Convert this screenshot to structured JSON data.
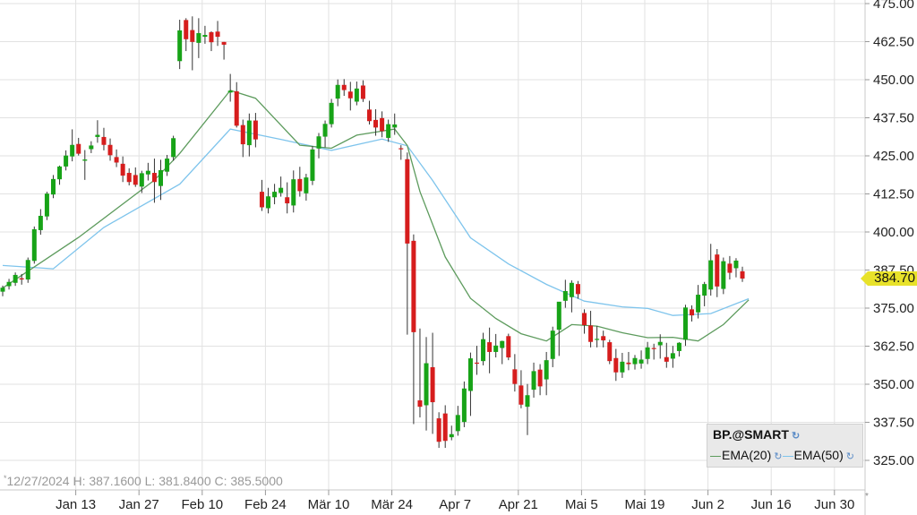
{
  "chart_data": {
    "type": "candlestick",
    "symbol": "BP.@SMART",
    "ylim": [
      318,
      475
    ],
    "y_ticks": [
      "475.00",
      "462.50",
      "450.00",
      "437.50",
      "425.00",
      "412.50",
      "400.00",
      "387.50",
      "375.00",
      "362.50",
      "350.00",
      "337.50",
      "325.00"
    ],
    "y_tick_values": [
      475,
      462.5,
      450,
      437.5,
      425,
      412.5,
      400,
      387.5,
      375,
      362.5,
      350,
      337.5,
      325
    ],
    "x_ticks": [
      "Jan 13",
      "Jan 27",
      "Feb 10",
      "Feb 24",
      "Mär 10",
      "Mär 24",
      "Apr 7",
      "Apr 21",
      "Mai 5",
      "Mai 19",
      "Jun 2",
      "Jun 16",
      "Jun 30"
    ],
    "last_price": "384.70",
    "last_price_value": 384.7,
    "ohlc_readout": "12/27/2024 H: 387.1600 L: 381.8400 C: 385.5000",
    "legend": {
      "symbol": "BP.@SMART",
      "ema20": "EMA(20)",
      "ema50": "EMA(50)"
    },
    "colors": {
      "up": "#17a317",
      "down": "#d61d1d",
      "ema20": "#5d9b5d",
      "ema50": "#7ec4ec",
      "grid": "#e2e2e2",
      "highlight": "#e8e22a"
    },
    "candles": [
      [
        380.4,
        382.4,
        378.9,
        381.7
      ],
      [
        382.2,
        384.6,
        381.1,
        383.6
      ],
      [
        383.3,
        386.7,
        382.3,
        385.9
      ],
      [
        384.8,
        386.2,
        382.7,
        384.4
      ],
      [
        384.4,
        391.6,
        383.3,
        390.8
      ],
      [
        390.5,
        401.8,
        389.6,
        400.9
      ],
      [
        400.6,
        407.5,
        399.1,
        405.3
      ],
      [
        405.1,
        413.2,
        403.9,
        412.6
      ],
      [
        412.3,
        418.7,
        411.1,
        417.4
      ],
      [
        417.3,
        421.8,
        415.5,
        421.5
      ],
      [
        421.5,
        426.8,
        420.2,
        425.1
      ],
      [
        424.8,
        433.7,
        423.2,
        428.6
      ],
      [
        428.9,
        430.9,
        425.1,
        425.7
      ],
      [
        423.4,
        426.9,
        417.1,
        423.8
      ],
      [
        427.2,
        429.8,
        425.9,
        428.4
      ],
      [
        431.2,
        436.7,
        429.3,
        431.9
      ],
      [
        431.2,
        434.2,
        426.8,
        428.6
      ],
      [
        428.6,
        430.7,
        423.4,
        425.2
      ],
      [
        424.6,
        427.1,
        421.3,
        422.8
      ],
      [
        422.4,
        424.8,
        416.4,
        418.5
      ],
      [
        419.4,
        420.9,
        415.3,
        416.4
      ],
      [
        418.7,
        421.2,
        414.8,
        415.5
      ],
      [
        414.9,
        420.1,
        412.8,
        419.3
      ],
      [
        418.9,
        422.7,
        416.9,
        420.1
      ],
      [
        419.4,
        424.1,
        409.6,
        416.4
      ],
      [
        415.1,
        423.7,
        410.5,
        420.3
      ],
      [
        419.8,
        425.3,
        418.4,
        424.1
      ],
      [
        424.6,
        431.6,
        423.4,
        430.8
      ],
      [
        456.1,
        469.7,
        453.5,
        466.2
      ],
      [
        469.6,
        470.2,
        459.4,
        463.3
      ],
      [
        466.3,
        470.8,
        453.1,
        462.4
      ],
      [
        462.1,
        470.2,
        457.1,
        465.3
      ],
      [
        464.1,
        467.7,
        461.8,
        464.7
      ],
      [
        465.6,
        465.9,
        459.4,
        462.3
      ],
      [
        465.8,
        469.3,
        461.1,
        464.1
      ],
      [
        462.4,
        462.4,
        456.6,
        461.5
      ],
      [
        445.8,
        451.9,
        442.8,
        446.4
      ],
      [
        446.2,
        449.2,
        434.3,
        434.9
      ],
      [
        435.1,
        436.9,
        424.6,
        428.8
      ],
      [
        428.5,
        438.9,
        424.8,
        436.6
      ],
      [
        436.6,
        439.1,
        427.8,
        430.4
      ],
      [
        413.2,
        417.1,
        406.9,
        408.1
      ],
      [
        407.8,
        414.5,
        406.1,
        411.7
      ],
      [
        411.4,
        415.8,
        409.1,
        413.2
      ],
      [
        412.8,
        418.2,
        411.6,
        414.5
      ],
      [
        411.4,
        416.3,
        406.1,
        409.4
      ],
      [
        408.7,
        420.2,
        406.4,
        417.3
      ],
      [
        417.4,
        421.4,
        411.6,
        413.4
      ],
      [
        412.7,
        419.1,
        410.3,
        417.9
      ],
      [
        416.8,
        428.2,
        415.4,
        427.1
      ],
      [
        427.4,
        432.5,
        424.2,
        431.4
      ],
      [
        431.3,
        436.6,
        427.8,
        435.5
      ],
      [
        435.4,
        443.7,
        434.3,
        442.4
      ],
      [
        443.8,
        450.1,
        441.3,
        448.3
      ],
      [
        448.3,
        450.2,
        444.7,
        446.6
      ],
      [
        446.1,
        449.3,
        439.9,
        443.9
      ],
      [
        442.8,
        449.4,
        441.6,
        447.1
      ],
      [
        448.1,
        449.8,
        442.7,
        443.7
      ],
      [
        440.2,
        443.1,
        435.3,
        436.4
      ],
      [
        436.8,
        440.3,
        431.6,
        434.3
      ],
      [
        437.4,
        439.6,
        431.1,
        433.1
      ],
      [
        430.9,
        436.9,
        429.6,
        435.4
      ],
      [
        434.3,
        438.9,
        431.9,
        435.3
      ],
      [
        427.5,
        428.5,
        423.7,
        427.3
      ],
      [
        423.9,
        426.1,
        366.3,
        396.2
      ],
      [
        397.1,
        399.2,
        336.9,
        367.1
      ],
      [
        344.7,
        368.3,
        339.1,
        342.6
      ],
      [
        343.1,
        365.5,
        334.8,
        356.9
      ],
      [
        355.6,
        366.9,
        333.7,
        344.1
      ],
      [
        338.8,
        340.8,
        329.1,
        331.1
      ],
      [
        340.4,
        343.1,
        329.1,
        331.4
      ],
      [
        332.6,
        336.4,
        331.6,
        333.6
      ],
      [
        334.6,
        342.9,
        333.1,
        339.9
      ],
      [
        337.6,
        350.9,
        335.9,
        348.6
      ],
      [
        347.8,
        360.4,
        339.6,
        358.5
      ],
      [
        357.1,
        362.6,
        353.1,
        356.9
      ],
      [
        357.6,
        366.9,
        356.2,
        364.8
      ],
      [
        363.8,
        368.6,
        353.6,
        360.6
      ],
      [
        360.6,
        366.5,
        358.8,
        362.7
      ],
      [
        361.9,
        364.3,
        356.6,
        364.2
      ],
      [
        365.8,
        366.6,
        357.9,
        358.8
      ],
      [
        354.9,
        359.9,
        347.6,
        350.1
      ],
      [
        349.6,
        354.6,
        342.1,
        343.3
      ],
      [
        342.6,
        350.1,
        333.3,
        346.4
      ],
      [
        348.2,
        357.1,
        345.6,
        354.3
      ],
      [
        354.8,
        356.6,
        346.4,
        349.3
      ],
      [
        351.6,
        360.6,
        346.4,
        357.9
      ],
      [
        358.3,
        368.9,
        355.6,
        367.6
      ],
      [
        367.9,
        376.7,
        359.3,
        377.1
      ],
      [
        377.4,
        384.3,
        375.1,
        380.6
      ],
      [
        378.6,
        384.1,
        373.6,
        383.3
      ],
      [
        382.9,
        383.9,
        378.1,
        379.6
      ],
      [
        373.4,
        374.6,
        366.6,
        369.4
      ],
      [
        369.3,
        374.1,
        362.1,
        363.9
      ],
      [
        364.8,
        369.1,
        362.1,
        364.9
      ],
      [
        365.8,
        367.6,
        362.1,
        364.4
      ],
      [
        363.8,
        364.6,
        356.6,
        357.6
      ],
      [
        358.6,
        361.6,
        351.1,
        353.9
      ],
      [
        353.9,
        360.3,
        352.1,
        357.4
      ],
      [
        357.1,
        360.6,
        354.6,
        356.6
      ],
      [
        356.6,
        359.6,
        354.8,
        358.6
      ],
      [
        356.8,
        361.1,
        355.1,
        358.1
      ],
      [
        358.3,
        363.9,
        356.6,
        362.1
      ],
      [
        361.9,
        363.3,
        358.1,
        361.8
      ],
      [
        362.8,
        366.4,
        358.4,
        363.9
      ],
      [
        358.9,
        363.6,
        355.4,
        357.4
      ],
      [
        358.4,
        362.6,
        355.4,
        360.2
      ],
      [
        360.9,
        363.8,
        359.1,
        363.6
      ],
      [
        364.6,
        376.1,
        362.6,
        375.2
      ],
      [
        374.6,
        375.9,
        370.6,
        372.6
      ],
      [
        373.6,
        382.6,
        371.6,
        379.4
      ],
      [
        379.1,
        383.6,
        375.6,
        382.9
      ],
      [
        381.1,
        396.1,
        379.1,
        390.7
      ],
      [
        392.6,
        394.4,
        378.6,
        382.1
      ],
      [
        381.3,
        391.6,
        379.6,
        390.4
      ],
      [
        389.6,
        392.1,
        384.4,
        386.6
      ],
      [
        388.1,
        391.4,
        385.1,
        390.6
      ],
      [
        387.1,
        388.6,
        383.6,
        384.7
      ]
    ],
    "ema20": [
      [
        0,
        381.6
      ],
      [
        12,
        398.2
      ],
      [
        24,
        417.0
      ],
      [
        28,
        425.8
      ],
      [
        36,
        446.5
      ],
      [
        40,
        443.9
      ],
      [
        47,
        428.5
      ],
      [
        52,
        427.5
      ],
      [
        56,
        431.8
      ],
      [
        62,
        433.8
      ],
      [
        64,
        428.4
      ],
      [
        66,
        413.2
      ],
      [
        70,
        391.8
      ],
      [
        74,
        378.2
      ],
      [
        78,
        371.6
      ],
      [
        82,
        366.6
      ],
      [
        86,
        364.2
      ],
      [
        90,
        369.6
      ],
      [
        94,
        369.1
      ],
      [
        98,
        366.9
      ],
      [
        102,
        365.3
      ],
      [
        106,
        365.4
      ],
      [
        110,
        364.2
      ],
      [
        114,
        369.6
      ],
      [
        118,
        377.7
      ]
    ],
    "ema50": [
      [
        0,
        389.0
      ],
      [
        8,
        387.9
      ],
      [
        16,
        401.5
      ],
      [
        28,
        415.7
      ],
      [
        36,
        433.8
      ],
      [
        44,
        430.4
      ],
      [
        52,
        426.8
      ],
      [
        60,
        430.5
      ],
      [
        64,
        428.3
      ],
      [
        68,
        416.9
      ],
      [
        74,
        398.1
      ],
      [
        80,
        389.5
      ],
      [
        86,
        382.8
      ],
      [
        92,
        377.3
      ],
      [
        98,
        375.4
      ],
      [
        102,
        374.9
      ],
      [
        106,
        372.6
      ],
      [
        112,
        373.2
      ],
      [
        118,
        378.1
      ]
    ]
  }
}
